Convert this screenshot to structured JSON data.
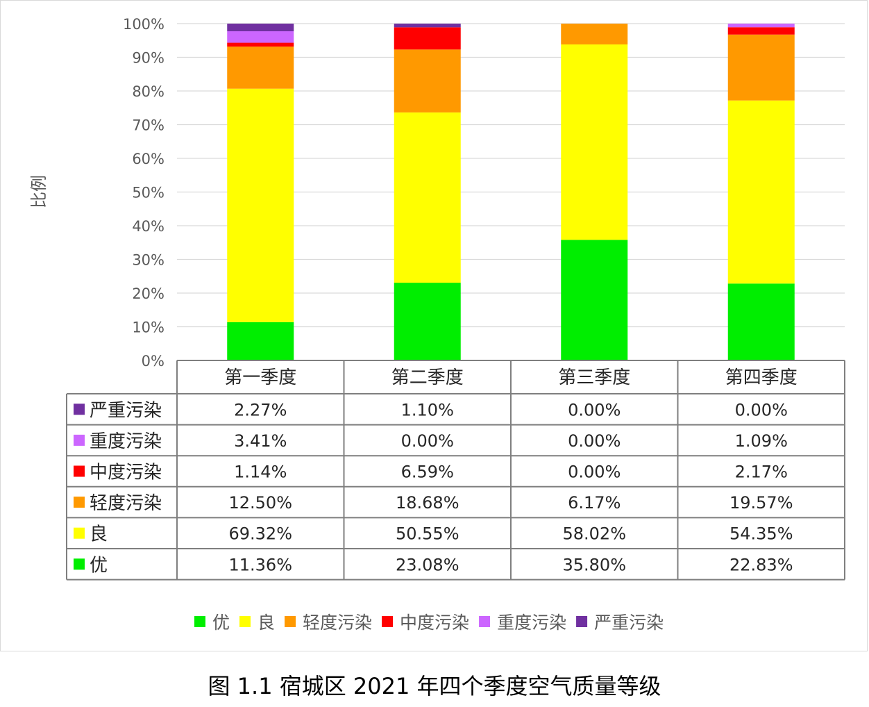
{
  "caption": "图 1.1  宿城区 2021 年四个季度空气质量等级",
  "chart_data": {
    "type": "bar",
    "stacked": true,
    "ylabel": "比例",
    "ylim": [
      0,
      100
    ],
    "yticks": [
      "0%",
      "10%",
      "20%",
      "30%",
      "40%",
      "50%",
      "60%",
      "70%",
      "80%",
      "90%",
      "100%"
    ],
    "grid": true,
    "legend_placement": "bottom",
    "categories": [
      "第一季度",
      "第二季度",
      "第三季度",
      "第四季度"
    ],
    "series": [
      {
        "name": "优",
        "color": "#00ee00",
        "values": [
          11.36,
          23.08,
          35.8,
          22.83
        ],
        "labels": [
          "11.36%",
          "23.08%",
          "35.80%",
          "22.83%"
        ]
      },
      {
        "name": "良",
        "color": "#ffff00",
        "values": [
          69.32,
          50.55,
          58.02,
          54.35
        ],
        "labels": [
          "69.32%",
          "50.55%",
          "58.02%",
          "54.35%"
        ]
      },
      {
        "name": "轻度污染",
        "color": "#ff9900",
        "values": [
          12.5,
          18.68,
          6.17,
          19.57
        ],
        "labels": [
          "12.50%",
          "18.68%",
          "6.17%",
          "19.57%"
        ]
      },
      {
        "name": "中度污染",
        "color": "#ff0000",
        "values": [
          1.14,
          6.59,
          0.0,
          2.17
        ],
        "labels": [
          "1.14%",
          "6.59%",
          "0.00%",
          "2.17%"
        ]
      },
      {
        "name": "重度污染",
        "color": "#cc66ff",
        "values": [
          3.41,
          0.0,
          0.0,
          1.09
        ],
        "labels": [
          "3.41%",
          "0.00%",
          "0.00%",
          "1.09%"
        ]
      },
      {
        "name": "严重污染",
        "color": "#7030a0",
        "values": [
          2.27,
          1.1,
          0.0,
          0.0
        ],
        "labels": [
          "2.27%",
          "1.10%",
          "0.00%",
          "0.00%"
        ]
      }
    ]
  }
}
